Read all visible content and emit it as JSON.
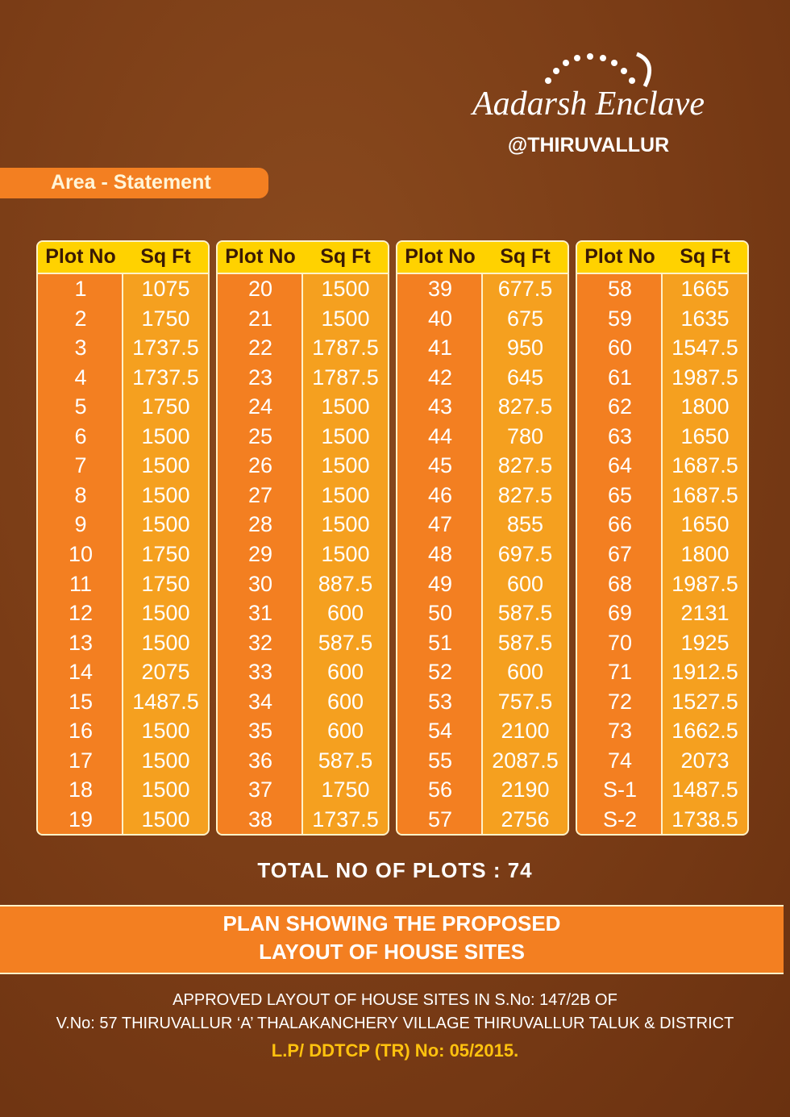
{
  "logo": {
    "brand": "Aadarsh Enclave",
    "location": "@THIRUVALLUR"
  },
  "tab": "Area - Statement",
  "columns": [
    "Plot No",
    "Sq Ft"
  ],
  "tables": [
    {
      "rows": [
        [
          "1",
          "1075"
        ],
        [
          "2",
          "1750"
        ],
        [
          "3",
          "1737.5"
        ],
        [
          "4",
          "1737.5"
        ],
        [
          "5",
          "1750"
        ],
        [
          "6",
          "1500"
        ],
        [
          "7",
          "1500"
        ],
        [
          "8",
          "1500"
        ],
        [
          "9",
          "1500"
        ],
        [
          "10",
          "1750"
        ],
        [
          "11",
          "1750"
        ],
        [
          "12",
          "1500"
        ],
        [
          "13",
          "1500"
        ],
        [
          "14",
          "2075"
        ],
        [
          "15",
          "1487.5"
        ],
        [
          "16",
          "1500"
        ],
        [
          "17",
          "1500"
        ],
        [
          "18",
          "1500"
        ],
        [
          "19",
          "1500"
        ]
      ]
    },
    {
      "rows": [
        [
          "20",
          "1500"
        ],
        [
          "21",
          "1500"
        ],
        [
          "22",
          "1787.5"
        ],
        [
          "23",
          "1787.5"
        ],
        [
          "24",
          "1500"
        ],
        [
          "25",
          "1500"
        ],
        [
          "26",
          "1500"
        ],
        [
          "27",
          "1500"
        ],
        [
          "28",
          "1500"
        ],
        [
          "29",
          "1500"
        ],
        [
          "30",
          "887.5"
        ],
        [
          "31",
          "600"
        ],
        [
          "32",
          "587.5"
        ],
        [
          "33",
          "600"
        ],
        [
          "34",
          "600"
        ],
        [
          "35",
          "600"
        ],
        [
          "36",
          "587.5"
        ],
        [
          "37",
          "1750"
        ],
        [
          "38",
          "1737.5"
        ]
      ]
    },
    {
      "rows": [
        [
          "39",
          "677.5"
        ],
        [
          "40",
          "675"
        ],
        [
          "41",
          "950"
        ],
        [
          "42",
          "645"
        ],
        [
          "43",
          "827.5"
        ],
        [
          "44",
          "780"
        ],
        [
          "45",
          "827.5"
        ],
        [
          "46",
          "827.5"
        ],
        [
          "47",
          "855"
        ],
        [
          "48",
          "697.5"
        ],
        [
          "49",
          "600"
        ],
        [
          "50",
          "587.5"
        ],
        [
          "51",
          "587.5"
        ],
        [
          "52",
          "600"
        ],
        [
          "53",
          "757.5"
        ],
        [
          "54",
          "2100"
        ],
        [
          "55",
          "2087.5"
        ],
        [
          "56",
          "2190"
        ],
        [
          "57",
          "2756"
        ]
      ]
    },
    {
      "rows": [
        [
          "58",
          "1665"
        ],
        [
          "59",
          "1635"
        ],
        [
          "60",
          "1547.5"
        ],
        [
          "61",
          "1987.5"
        ],
        [
          "62",
          "1800"
        ],
        [
          "63",
          "1650"
        ],
        [
          "64",
          "1687.5"
        ],
        [
          "65",
          "1687.5"
        ],
        [
          "66",
          "1650"
        ],
        [
          "67",
          "1800"
        ],
        [
          "68",
          "1987.5"
        ],
        [
          "69",
          "2131"
        ],
        [
          "70",
          "1925"
        ],
        [
          "71",
          "1912.5"
        ],
        [
          "72",
          "1527.5"
        ],
        [
          "73",
          "1662.5"
        ],
        [
          "74",
          "2073"
        ],
        [
          "S-1",
          "1487.5"
        ],
        [
          "S-2",
          "1738.5"
        ]
      ]
    }
  ],
  "total": "TOTAL NO OF PLOTS : 74",
  "banner": [
    "PLAN SHOWING THE PROPOSED",
    "LAYOUT OF HOUSE SITES"
  ],
  "footer": [
    "APPROVED LAYOUT OF HOUSE SITES IN S.No: 147/2B OF",
    "V.No: 57 THIRUVALLUR ‘A’ THALAKANCHERY VILLAGE THIRUVALLUR TALUK & DISTRICT",
    "L.P/ DDTCP (TR) No: 05/2015."
  ]
}
